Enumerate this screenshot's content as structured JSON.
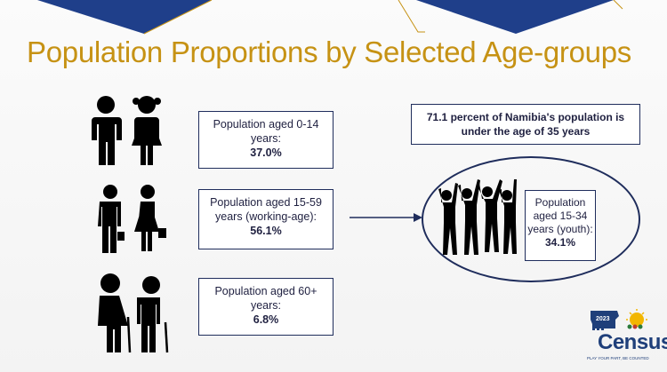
{
  "slide": {
    "title": "Population Proportions by Selected Age-groups"
  },
  "groups": [
    {
      "label": "Population aged 0-14 years:",
      "value": "37.0%",
      "icon": "children-icon"
    },
    {
      "label": "Population aged 15-59 years (working-age):",
      "value": "56.1%",
      "icon": "working-adults-icon"
    },
    {
      "label": "Population aged 60+ years:",
      "value": "6.8%",
      "icon": "elderly-icon"
    }
  ],
  "note": "71.1 percent of Namibia's population is under the age of 35 years",
  "youth": {
    "label": "Population aged 15-34 years (youth):",
    "value": "34.1%",
    "icon": "youth-silhouettes-icon"
  },
  "logo": {
    "year": "2023",
    "word": "Census",
    "tagline": "PLAY YOUR PART, BE COUNTED"
  },
  "colors": {
    "title": "#c69214",
    "navy": "#1f2d5c",
    "figure": "#000000"
  }
}
